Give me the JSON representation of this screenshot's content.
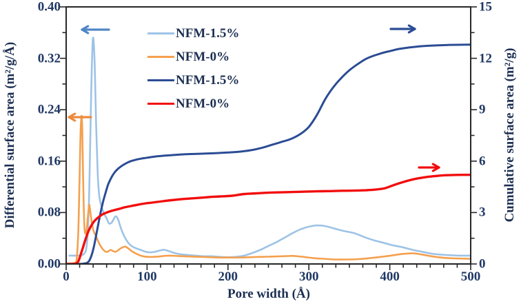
{
  "axes": {
    "left": {
      "title": "Differential surface area (m²/g/Å)"
    },
    "right": {
      "title": "Cumulative surface area (m²/g)"
    },
    "bottom": {
      "title": "Pore width (Å)"
    }
  },
  "legend": {
    "items": [
      {
        "label": "NFM-1.5%",
        "color": "#9DC3E6"
      },
      {
        "label": "NFM-0%",
        "color": "#F4A04E"
      },
      {
        "label": "NFM-1.5%",
        "color": "#2B4C94"
      },
      {
        "label": "NFM-0%",
        "color": "#F20D0D"
      }
    ]
  },
  "chart_data": {
    "type": "line",
    "title": "",
    "xlabel": "Pore width (Å)",
    "ylabel_left": "Differential surface area (m²/g/Å)",
    "ylabel_right": "Cumulative surface area (m²/g)",
    "x_range": [
      0,
      500
    ],
    "y_left_range": [
      0,
      0.4
    ],
    "y_right_range": [
      0,
      15
    ],
    "grid": false,
    "x_ticks": {
      "values": [
        0,
        100,
        200,
        300,
        400,
        500
      ],
      "labels": [
        "0",
        "100",
        "200",
        "300",
        "400",
        "500"
      ],
      "minor_step": 16.6667
    },
    "y_left_ticks": {
      "values": [
        0,
        0.08,
        0.16,
        0.24,
        0.32,
        0.4
      ],
      "labels": [
        "0.00",
        "0.08",
        "0.16",
        "0.24",
        "0.32",
        "0.40"
      ],
      "minor_step": 0.04
    },
    "y_right_ticks": {
      "values": [
        0,
        3,
        6,
        9,
        12,
        15
      ],
      "labels": [
        "0",
        "3",
        "6",
        "9",
        "12",
        "15"
      ],
      "minor_step": 1.5
    },
    "series": [
      {
        "name": "NFM-1.5%",
        "role": "differential",
        "axis": "left",
        "color": "#9DC3E6",
        "width": 2.6,
        "x": [
          4,
          9,
          13,
          17,
          20,
          23,
          25,
          27,
          29,
          31,
          33,
          35,
          37,
          39,
          41,
          44,
          47,
          50,
          53,
          56,
          58,
          61,
          64,
          67,
          70,
          74,
          78,
          82,
          87,
          92,
          98,
          104,
          110,
          116,
          121,
          127,
          134,
          142,
          150,
          160,
          170,
          180,
          190,
          200,
          210,
          220,
          230,
          240,
          250,
          260,
          270,
          280,
          290,
          300,
          310,
          320,
          332,
          344,
          356,
          368,
          380,
          392,
          404,
          416,
          428,
          440,
          452,
          464,
          476,
          488,
          500
        ],
        "y": [
          0.013,
          0.013,
          0.013,
          0.013,
          0.014,
          0.017,
          0.025,
          0.055,
          0.14,
          0.27,
          0.35,
          0.32,
          0.22,
          0.14,
          0.105,
          0.088,
          0.078,
          0.071,
          0.063,
          0.064,
          0.068,
          0.074,
          0.07,
          0.058,
          0.048,
          0.038,
          0.031,
          0.027,
          0.024,
          0.022,
          0.019,
          0.018,
          0.019,
          0.021,
          0.022,
          0.02,
          0.017,
          0.015,
          0.014,
          0.013,
          0.012,
          0.012,
          0.011,
          0.0105,
          0.011,
          0.013,
          0.017,
          0.022,
          0.028,
          0.034,
          0.041,
          0.048,
          0.054,
          0.058,
          0.06,
          0.059,
          0.055,
          0.051,
          0.048,
          0.042,
          0.037,
          0.033,
          0.029,
          0.026,
          0.022,
          0.019,
          0.016,
          0.0145,
          0.0135,
          0.013,
          0.013
        ]
      },
      {
        "name": "NFM-0%",
        "role": "differential",
        "axis": "left",
        "color": "#F4A04E",
        "width": 2.6,
        "x": [
          2,
          7,
          11,
          13,
          15,
          16.5,
          18,
          19.5,
          21,
          22.5,
          24,
          25.5,
          27,
          28.5,
          30,
          32,
          34,
          37,
          40,
          43,
          46,
          49,
          52,
          55,
          58,
          61,
          64,
          67,
          70,
          73,
          77,
          81,
          85,
          90,
          95,
          101,
          107,
          114,
          121,
          128,
          136,
          145,
          155,
          166,
          177,
          189,
          202,
          215,
          228,
          241,
          254,
          267,
          280,
          293,
          306,
          319,
          333,
          347,
          361,
          375,
          389,
          401,
          411,
          420,
          429,
          439,
          449,
          460,
          473,
          486,
          500
        ],
        "y": [
          0.001,
          0.001,
          0.002,
          0.008,
          0.05,
          0.13,
          0.21,
          0.225,
          0.13,
          0.06,
          0.047,
          0.055,
          0.075,
          0.092,
          0.08,
          0.062,
          0.051,
          0.043,
          0.034,
          0.027,
          0.022,
          0.019,
          0.0195,
          0.022,
          0.02,
          0.019,
          0.021,
          0.024,
          0.026,
          0.027,
          0.024,
          0.02,
          0.017,
          0.014,
          0.012,
          0.011,
          0.011,
          0.0115,
          0.0125,
          0.013,
          0.0125,
          0.012,
          0.0115,
          0.011,
          0.0105,
          0.01,
          0.01,
          0.01,
          0.0105,
          0.011,
          0.0115,
          0.012,
          0.0125,
          0.011,
          0.009,
          0.008,
          0.007,
          0.007,
          0.0075,
          0.009,
          0.011,
          0.013,
          0.0148,
          0.016,
          0.0165,
          0.0148,
          0.0125,
          0.0105,
          0.009,
          0.0085,
          0.008
        ]
      },
      {
        "name": "NFM-1.5%",
        "role": "cumulative",
        "axis": "right",
        "color": "#2B4C94",
        "width": 3,
        "x": [
          0,
          12,
          20,
          25,
          28,
          31,
          34,
          37,
          40,
          43,
          46,
          49,
          52,
          56,
          60,
          64,
          68,
          72,
          76,
          80,
          86,
          92,
          100,
          110,
          122,
          134,
          146,
          158,
          170,
          182,
          194,
          206,
          218,
          230,
          242,
          254,
          266,
          278,
          290,
          300,
          310,
          320,
          330,
          340,
          350,
          360,
          370,
          380,
          390,
          400,
          412,
          424,
          436,
          448,
          460,
          472,
          484,
          500
        ],
        "y": [
          0,
          0,
          0.01,
          0.05,
          0.15,
          0.45,
          0.95,
          1.65,
          2.4,
          3.1,
          3.7,
          4.2,
          4.65,
          5.05,
          5.35,
          5.55,
          5.7,
          5.82,
          5.92,
          6.0,
          6.08,
          6.14,
          6.2,
          6.27,
          6.32,
          6.36,
          6.4,
          6.42,
          6.44,
          6.46,
          6.49,
          6.52,
          6.57,
          6.65,
          6.78,
          6.95,
          7.12,
          7.3,
          7.6,
          8.0,
          8.7,
          9.6,
          10.3,
          10.85,
          11.3,
          11.65,
          11.95,
          12.15,
          12.3,
          12.42,
          12.55,
          12.63,
          12.69,
          12.73,
          12.76,
          12.78,
          12.79,
          12.8
        ]
      },
      {
        "name": "NFM-0%",
        "role": "cumulative",
        "axis": "right",
        "color": "#F20D0D",
        "width": 3.4,
        "x": [
          0,
          8,
          12,
          15,
          18,
          21,
          24,
          27,
          30,
          34,
          38,
          42,
          46,
          50,
          55,
          60,
          66,
          72,
          80,
          88,
          96,
          106,
          116,
          126,
          138,
          150,
          162,
          176,
          190,
          205,
          220,
          235,
          250,
          265,
          280,
          295,
          310,
          325,
          340,
          355,
          370,
          382,
          394,
          406,
          418,
          430,
          442,
          454,
          466,
          478,
          490,
          500
        ],
        "y": [
          0,
          0,
          0.02,
          0.15,
          0.55,
          1.0,
          1.45,
          1.85,
          2.15,
          2.45,
          2.65,
          2.8,
          2.92,
          3.0,
          3.08,
          3.15,
          3.22,
          3.3,
          3.38,
          3.45,
          3.52,
          3.58,
          3.64,
          3.7,
          3.76,
          3.81,
          3.85,
          3.9,
          3.94,
          3.98,
          4.08,
          4.12,
          4.16,
          4.18,
          4.2,
          4.22,
          4.24,
          4.25,
          4.27,
          4.28,
          4.3,
          4.34,
          4.42,
          4.62,
          4.8,
          4.95,
          5.05,
          5.12,
          5.17,
          5.19,
          5.2,
          5.2
        ]
      }
    ],
    "arrows": [
      {
        "name": "differential-axis-arrow-blue",
        "color": "#4F86C6",
        "from": [
          158,
          43
        ],
        "to": [
          119,
          43
        ]
      },
      {
        "name": "differential-axis-arrow-orange",
        "color": "#ED8A3C",
        "from": [
          132,
          170
        ],
        "to": [
          100,
          170
        ]
      },
      {
        "name": "cumulative-axis-arrow-navy",
        "color": "#2B4C94",
        "from": [
          567,
          42
        ],
        "to": [
          602,
          42
        ]
      },
      {
        "name": "cumulative-axis-arrow-red",
        "color": "#F20D0D",
        "from": [
          608,
          243
        ],
        "to": [
          637,
          243
        ]
      }
    ]
  }
}
